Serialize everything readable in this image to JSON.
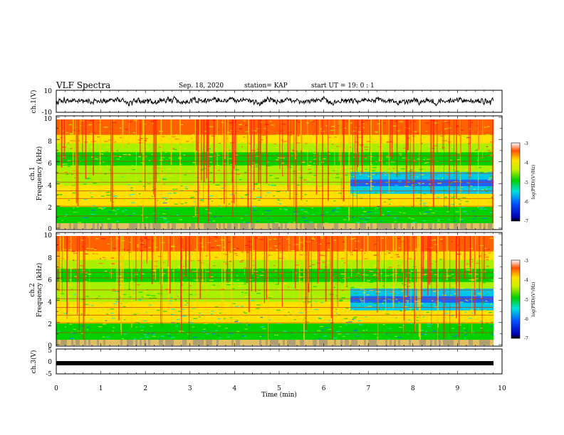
{
  "header": {
    "title": "VLF Spectra",
    "date": "Sep. 18, 2020",
    "station": "station= KAP",
    "start": "start  UT =   19: 0  : 1"
  },
  "chart_data": [
    {
      "type": "line",
      "panel": "waveform-ch1",
      "ylabel": "ch.1(V)",
      "ylim": [
        -10,
        10
      ],
      "yticks": [
        "10",
        "-10"
      ],
      "xlim": [
        0,
        10
      ]
    },
    {
      "type": "heatmap",
      "panel": "spectrogram-ch1",
      "ylabel": "ch.1",
      "ylabel2": "Frequency (kHz)",
      "ylim": [
        0,
        10
      ],
      "yticks": [
        "10",
        "8",
        "6",
        "4",
        "2",
        "0"
      ],
      "xlim": [
        0,
        10
      ],
      "data_end_min": 9.8,
      "colorbar": {
        "label": "log(PSD)(V²/Hz)",
        "range": [
          -7,
          -3
        ],
        "ticks": [
          "-3",
          "-4",
          "-5",
          "-6",
          "-7"
        ]
      }
    },
    {
      "type": "heatmap",
      "panel": "spectrogram-ch2",
      "ylabel": "ch.2",
      "ylabel2": "Frequency (kHz)",
      "ylim": [
        0,
        10
      ],
      "yticks": [
        "10",
        "8",
        "6",
        "4",
        "2",
        "0"
      ],
      "xlim": [
        0,
        10
      ],
      "data_end_min": 9.8,
      "colorbar": {
        "label": "log(PSD)(V²/Hz)",
        "range": [
          -7,
          -3
        ],
        "ticks": [
          "-3",
          "-4",
          "-5",
          "-6",
          "-7"
        ]
      }
    },
    {
      "type": "line",
      "panel": "waveform-ch3",
      "ylabel": "ch.3(V)",
      "ylim": [
        -5,
        5
      ],
      "yticks": [
        "5",
        "0",
        "-5"
      ],
      "xlim": [
        0,
        10
      ],
      "xlabel": "Time (min)",
      "xticks": [
        "0",
        "1",
        "2",
        "3",
        "4",
        "5",
        "6",
        "7",
        "8",
        "9",
        "10"
      ]
    }
  ]
}
